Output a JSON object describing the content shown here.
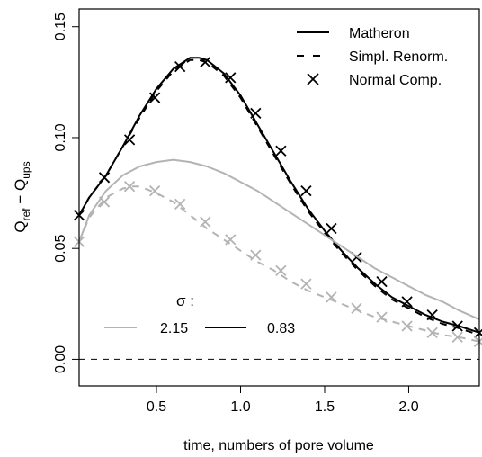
{
  "chart_data": {
    "type": "line",
    "xlabel": "time, numbers of pore volume",
    "ylabel_main": "Q",
    "ylabel_sub1": "ref",
    "ylabel_mid": " − Q",
    "ylabel_sub2": "ups",
    "xlim": [
      0.04,
      2.42
    ],
    "ylim": [
      -0.012,
      0.158
    ],
    "xticks": [
      0.5,
      1.0,
      1.5,
      2.0
    ],
    "xtick_labels": [
      "0.5",
      "1.0",
      "1.5",
      "2.0"
    ],
    "yticks": [
      0.0,
      0.05,
      0.1,
      0.15
    ],
    "ytick_labels": [
      "0.00",
      "0.05",
      "0.10",
      "0.15"
    ],
    "zero_line": true,
    "legend": {
      "placement": "top-right",
      "items": [
        {
          "label": "Matheron",
          "style": "solid"
        },
        {
          "label": "Simpl. Renorm.",
          "style": "dashed"
        },
        {
          "label": "Normal Comp.",
          "style": "cross"
        }
      ]
    },
    "sigma_legend": {
      "title": "σ :",
      "placement": "bottom-left",
      "items": [
        {
          "label": "2.15",
          "color": "#b3b3b3"
        },
        {
          "label": "0.83",
          "color": "#000000"
        }
      ]
    },
    "series": [
      {
        "sigma": "0.83",
        "method": "Matheron",
        "color": "#000000",
        "style": "solid",
        "x": [
          0.04,
          0.1,
          0.2,
          0.3,
          0.4,
          0.5,
          0.6,
          0.7,
          0.75,
          0.8,
          0.9,
          1.0,
          1.1,
          1.2,
          1.3,
          1.4,
          1.5,
          1.6,
          1.7,
          1.8,
          1.9,
          2.0,
          2.1,
          2.2,
          2.3,
          2.42
        ],
        "y": [
          0.065,
          0.073,
          0.083,
          0.096,
          0.11,
          0.122,
          0.131,
          0.136,
          0.136,
          0.135,
          0.129,
          0.119,
          0.106,
          0.093,
          0.08,
          0.068,
          0.058,
          0.049,
          0.041,
          0.034,
          0.028,
          0.024,
          0.02,
          0.017,
          0.015,
          0.012
        ]
      },
      {
        "sigma": "0.83",
        "method": "Simpl. Renorm.",
        "color": "#000000",
        "style": "dashed",
        "x": [
          0.04,
          0.1,
          0.2,
          0.3,
          0.4,
          0.5,
          0.6,
          0.7,
          0.75,
          0.8,
          0.9,
          1.0,
          1.1,
          1.2,
          1.3,
          1.4,
          1.5,
          1.6,
          1.7,
          1.8,
          1.9,
          2.0,
          2.1,
          2.2,
          2.3,
          2.42
        ],
        "y": [
          0.065,
          0.073,
          0.083,
          0.096,
          0.109,
          0.121,
          0.13,
          0.135,
          0.135,
          0.134,
          0.128,
          0.118,
          0.105,
          0.092,
          0.079,
          0.067,
          0.057,
          0.048,
          0.04,
          0.033,
          0.027,
          0.023,
          0.019,
          0.016,
          0.014,
          0.011
        ]
      },
      {
        "sigma": "0.83",
        "method": "Normal Comp.",
        "color": "#000000",
        "style": "cross",
        "x": [
          0.04,
          0.19,
          0.34,
          0.49,
          0.64,
          0.79,
          0.94,
          1.09,
          1.24,
          1.39,
          1.54,
          1.69,
          1.84,
          1.99,
          2.14,
          2.29,
          2.42
        ],
        "y": [
          0.065,
          0.082,
          0.099,
          0.118,
          0.132,
          0.134,
          0.127,
          0.111,
          0.094,
          0.076,
          0.059,
          0.046,
          0.035,
          0.026,
          0.02,
          0.015,
          0.012
        ]
      },
      {
        "sigma": "2.15",
        "method": "Matheron",
        "color": "#b3b3b3",
        "style": "solid",
        "x": [
          0.04,
          0.1,
          0.2,
          0.3,
          0.4,
          0.5,
          0.6,
          0.7,
          0.8,
          0.9,
          1.0,
          1.1,
          1.2,
          1.3,
          1.4,
          1.5,
          1.6,
          1.7,
          1.8,
          1.9,
          2.0,
          2.1,
          2.2,
          2.3,
          2.42
        ],
        "y": [
          0.053,
          0.065,
          0.076,
          0.083,
          0.087,
          0.089,
          0.09,
          0.089,
          0.087,
          0.084,
          0.08,
          0.076,
          0.071,
          0.066,
          0.061,
          0.056,
          0.051,
          0.046,
          0.041,
          0.037,
          0.033,
          0.029,
          0.026,
          0.022,
          0.018
        ]
      },
      {
        "sigma": "2.15",
        "method": "Simpl. Renorm.",
        "color": "#b3b3b3",
        "style": "dashed",
        "x": [
          0.04,
          0.1,
          0.2,
          0.3,
          0.35,
          0.4,
          0.5,
          0.6,
          0.7,
          0.8,
          0.9,
          1.0,
          1.1,
          1.2,
          1.3,
          1.4,
          1.5,
          1.6,
          1.7,
          1.8,
          1.9,
          2.0,
          2.1,
          2.2,
          2.3,
          2.42
        ],
        "y": [
          0.053,
          0.064,
          0.073,
          0.077,
          0.078,
          0.078,
          0.075,
          0.071,
          0.065,
          0.059,
          0.054,
          0.049,
          0.044,
          0.04,
          0.035,
          0.031,
          0.028,
          0.025,
          0.022,
          0.019,
          0.017,
          0.015,
          0.013,
          0.011,
          0.01,
          0.008
        ]
      },
      {
        "sigma": "2.15",
        "method": "Normal Comp.",
        "color": "#b3b3b3",
        "style": "cross",
        "x": [
          0.04,
          0.19,
          0.34,
          0.49,
          0.64,
          0.79,
          0.94,
          1.09,
          1.24,
          1.39,
          1.54,
          1.69,
          1.84,
          1.99,
          2.14,
          2.29,
          2.42
        ],
        "y": [
          0.053,
          0.071,
          0.078,
          0.076,
          0.07,
          0.062,
          0.054,
          0.047,
          0.04,
          0.034,
          0.028,
          0.023,
          0.019,
          0.015,
          0.012,
          0.01,
          0.008
        ]
      }
    ]
  }
}
